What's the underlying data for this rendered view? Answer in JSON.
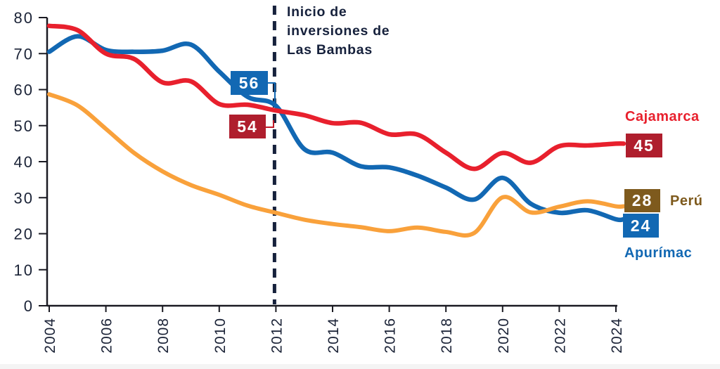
{
  "chart_data": {
    "type": "line",
    "title": "",
    "xlabel": "",
    "ylabel": "",
    "xlim": [
      2004,
      2024
    ],
    "ylim": [
      0,
      80
    ],
    "grid": false,
    "x": [
      2004,
      2005,
      2006,
      2007,
      2008,
      2009,
      2010,
      2011,
      2012,
      2013,
      2014,
      2015,
      2016,
      2017,
      2018,
      2019,
      2020,
      2021,
      2022,
      2023,
      2024
    ],
    "x_tick_labels": [
      "2004",
      "2006",
      "2008",
      "2010",
      "2012",
      "2014",
      "2016",
      "2018",
      "2020",
      "2022",
      "2024"
    ],
    "y_ticks": [
      0,
      10,
      20,
      30,
      40,
      50,
      60,
      70,
      80
    ],
    "axis_color": "#1a1a22",
    "tick_text_color": "#1B2337",
    "series": [
      {
        "name": "Cajamarca",
        "color": "#E8202D",
        "values": [
          77.7,
          76.5,
          70.0,
          68.5,
          62.0,
          62.3,
          56.0,
          55.8,
          54.2,
          52.9,
          50.7,
          50.8,
          47.6,
          47.5,
          42.5,
          38.0,
          42.4,
          39.7,
          44.3,
          44.5,
          45.0
        ]
      },
      {
        "name": "Perú",
        "color": "#F9A13B",
        "values": [
          58.7,
          55.6,
          49.1,
          42.4,
          37.3,
          33.5,
          30.8,
          27.8,
          25.8,
          23.9,
          22.7,
          21.8,
          20.7,
          21.7,
          20.5,
          20.2,
          30.1,
          25.9,
          27.5,
          29.0,
          27.6
        ]
      },
      {
        "name": "Apurímac",
        "color": "#1268B3",
        "values": [
          70.5,
          74.8,
          71.0,
          70.5,
          70.8,
          72.5,
          65.0,
          58.0,
          55.5,
          43.5,
          42.5,
          38.7,
          38.4,
          36.1,
          32.8,
          29.5,
          35.5,
          28.3,
          25.8,
          26.5,
          24.0
        ]
      }
    ],
    "event_line": {
      "year": 2012,
      "style": "dashed",
      "color": "#16213C",
      "label": "Inicio de\ninversiones de\nLas Bambas"
    },
    "callouts_2012": [
      {
        "series": "Apurímac",
        "year": 2012,
        "value": "56",
        "box_color": "#1268B3"
      },
      {
        "series": "Cajamarca",
        "year": 2012,
        "value": "54",
        "box_color": "#AF1E2D"
      }
    ],
    "end_labels": [
      {
        "series": "Cajamarca",
        "year": 2024,
        "value": "45",
        "box_color": "#AF1E2D",
        "text_color": "#E8202D"
      },
      {
        "series": "Perú",
        "year": 2024,
        "value": "28",
        "box_color": "#7E5A1D",
        "text_color": "#7E5A1D"
      },
      {
        "series": "Apurímac",
        "year": 2024,
        "value": "24",
        "box_color": "#1268B3",
        "text_color": "#1268B3"
      }
    ]
  }
}
